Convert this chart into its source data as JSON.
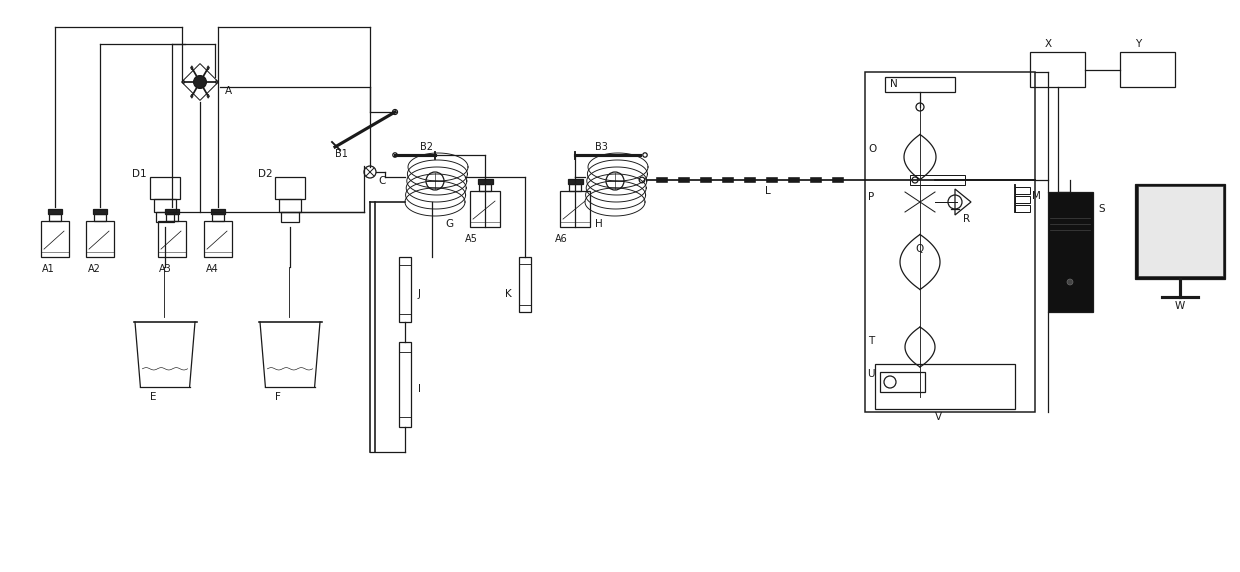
{
  "bg_color": "#ffffff",
  "line_color": "#1a1a1a",
  "figsize": [
    12.4,
    5.72
  ],
  "dpi": 100,
  "xlim": [
    0,
    124
  ],
  "ylim": [
    0,
    57.2
  ]
}
